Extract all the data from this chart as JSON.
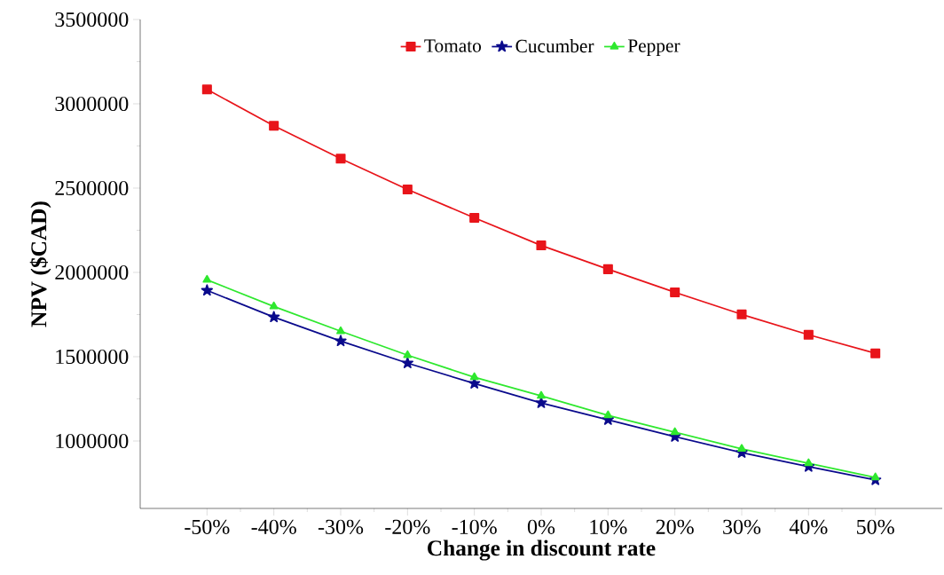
{
  "chart_data": {
    "type": "line",
    "xlabel": "Change in discount rate",
    "ylabel": "NPV ($CAD)",
    "categories": [
      "-50%",
      "-40%",
      "-30%",
      "-20%",
      "-10%",
      "0%",
      "10%",
      "20%",
      "30%",
      "40%",
      "50%"
    ],
    "series": [
      {
        "name": "Tomato",
        "color": "#e8141a",
        "marker": "square",
        "values": [
          3085000,
          2870000,
          2675000,
          2492000,
          2324000,
          2160000,
          2019000,
          1882000,
          1751000,
          1630000,
          1520000
        ]
      },
      {
        "name": "Cucumber",
        "color": "#0a0a8c",
        "marker": "star",
        "values": [
          1893000,
          1735000,
          1593000,
          1462000,
          1341000,
          1226000,
          1126000,
          1026000,
          931000,
          848000,
          769000
        ]
      },
      {
        "name": "Pepper",
        "color": "#2ee82e",
        "marker": "triangle",
        "values": [
          1956000,
          1798000,
          1651000,
          1509000,
          1378000,
          1268000,
          1152000,
          1052000,
          953000,
          868000,
          784000
        ]
      }
    ],
    "ylim": [
      600000,
      3500000
    ],
    "yticks": [
      1000000,
      1500000,
      2000000,
      2500000,
      3000000,
      3500000
    ],
    "legend": "top",
    "grid": false,
    "line_style": "solid"
  }
}
